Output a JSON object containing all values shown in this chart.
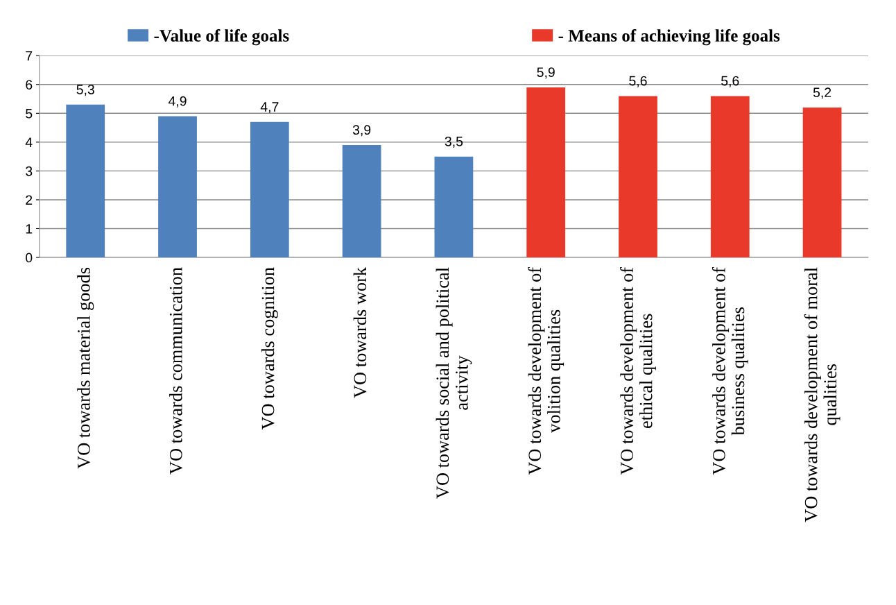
{
  "chart_data": {
    "type": "bar",
    "categories": [
      "VO towards material goods",
      "VO towards communication",
      "VO towards cognition",
      "VO towards work",
      "VO towards social and political activity",
      "VO towards development of volition qualities",
      "VO towards development of ethical qualities",
      "VO towards development of business qualities",
      "VO towards development of moral qualities"
    ],
    "series": [
      {
        "name": "-Value of life goals",
        "color": "#4f81bd",
        "values": [
          5.3,
          4.9,
          4.7,
          3.9,
          3.5,
          null,
          null,
          null,
          null
        ],
        "value_labels": [
          "5,3",
          "4,9",
          "4,7",
          "3,9",
          "3,5",
          null,
          null,
          null,
          null
        ]
      },
      {
        "name": "- Means of achieving life goals",
        "color": "#e8392a",
        "values": [
          null,
          null,
          null,
          null,
          null,
          5.9,
          5.6,
          5.6,
          5.2
        ],
        "value_labels": [
          null,
          null,
          null,
          null,
          null,
          "5,9",
          "5,6",
          "5,6",
          "5,2"
        ]
      }
    ],
    "ylim": [
      0,
      7
    ],
    "yticks": [
      0,
      1,
      2,
      3,
      4,
      5,
      6,
      7
    ],
    "grid": "y",
    "legend": "top"
  }
}
